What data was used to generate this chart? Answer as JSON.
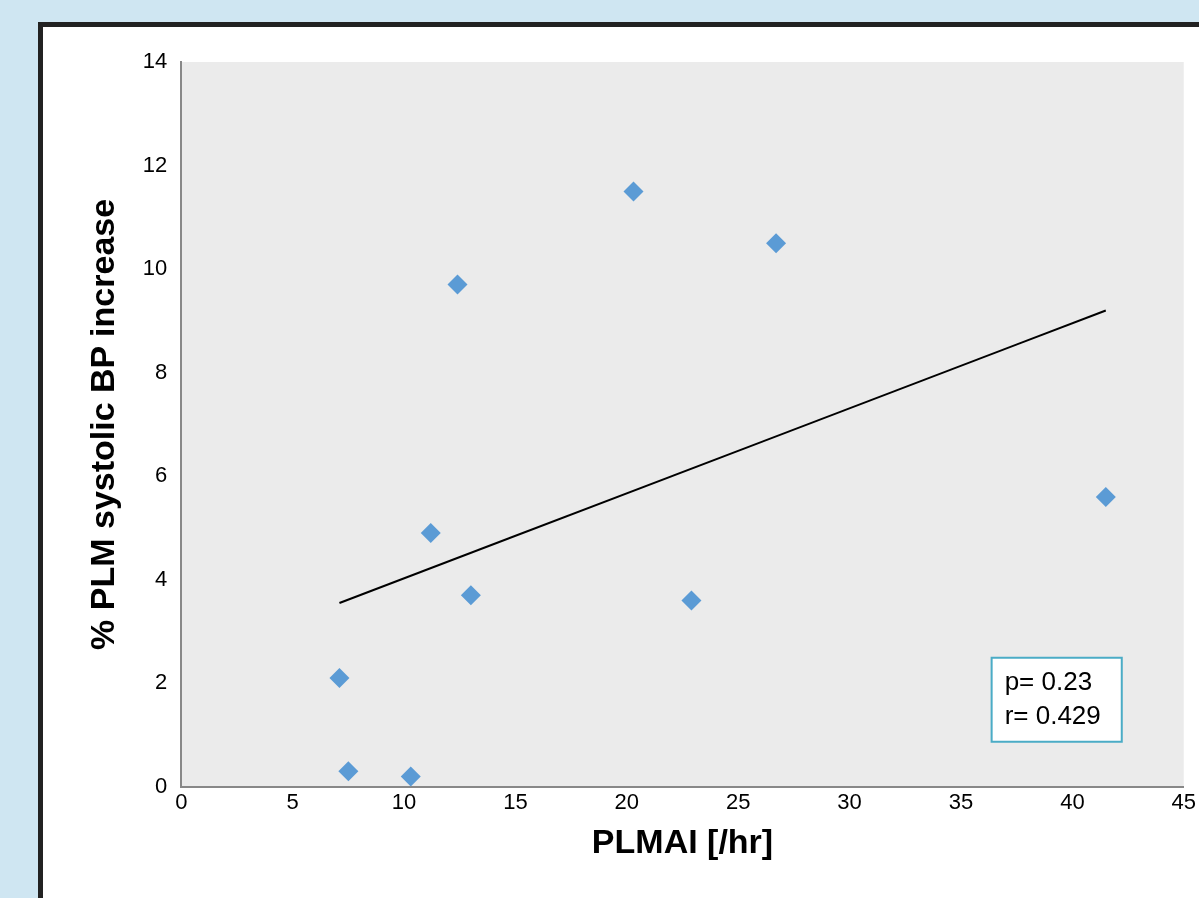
{
  "chart_data": {
    "type": "scatter",
    "xlabel": "PLMAI [/hr]",
    "ylabel": "% PLM systolic BP increase",
    "xlim": [
      0,
      45
    ],
    "xticks": [
      0,
      5,
      10,
      15,
      20,
      25,
      30,
      35,
      40,
      45
    ],
    "ylim": [
      0,
      14
    ],
    "yticks": [
      0,
      2,
      4,
      6,
      8,
      10,
      12,
      14
    ],
    "grid": false,
    "legend": false,
    "marker": "diamond",
    "series": [
      {
        "color": "#5b9bd5",
        "x": [
          7.1,
          7.5,
          10.3,
          11.2,
          12.4,
          13.0,
          20.3,
          22.9,
          26.7,
          41.5
        ],
        "values": [
          2.1,
          0.3,
          0.2,
          4.9,
          9.7,
          3.7,
          11.5,
          3.6,
          10.5,
          5.6
        ]
      },
      {
        "type": "line",
        "color": "#000000",
        "marker": "none",
        "x": [
          7.1,
          41.5
        ],
        "values": [
          3.55,
          9.2
        ]
      }
    ],
    "annotations": [
      "p= 0.23",
      "r= 0.429"
    ]
  }
}
